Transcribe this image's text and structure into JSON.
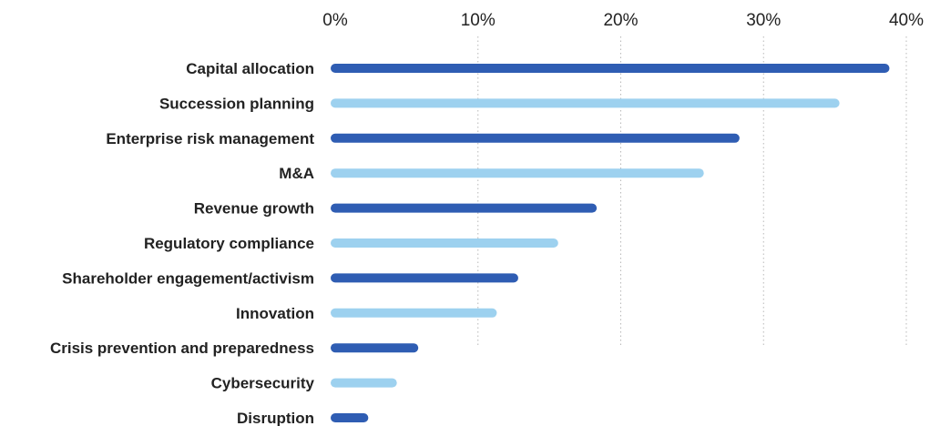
{
  "chart_data": {
    "type": "bar",
    "orientation": "horizontal",
    "categories": [
      "Capital allocation",
      "Succession planning",
      "Enterprise risk management",
      "M&A",
      "Revenue growth",
      "Regulatory compliance",
      "Shareholder engagement/activism",
      "Innovation",
      "Crisis prevention and preparedness",
      "Cybersecurity",
      "Disruption"
    ],
    "values": [
      38.5,
      35,
      28,
      25.5,
      18,
      15.3,
      12.5,
      11,
      5.5,
      4,
      2
    ],
    "xlim": [
      0,
      40
    ],
    "x_ticks": [
      "0%",
      "10%",
      "20%",
      "30%",
      "40%"
    ],
    "x_tick_values": [
      0,
      10,
      20,
      30,
      40
    ],
    "axis_position": "top",
    "grid": true,
    "legend": "none",
    "title": "",
    "xlabel": "",
    "ylabel": "",
    "colors": {
      "dark_bar": "#2f5db3",
      "light_bar": "#9dd1ef",
      "grid": "#b8b8b8",
      "text": "#222222"
    }
  }
}
